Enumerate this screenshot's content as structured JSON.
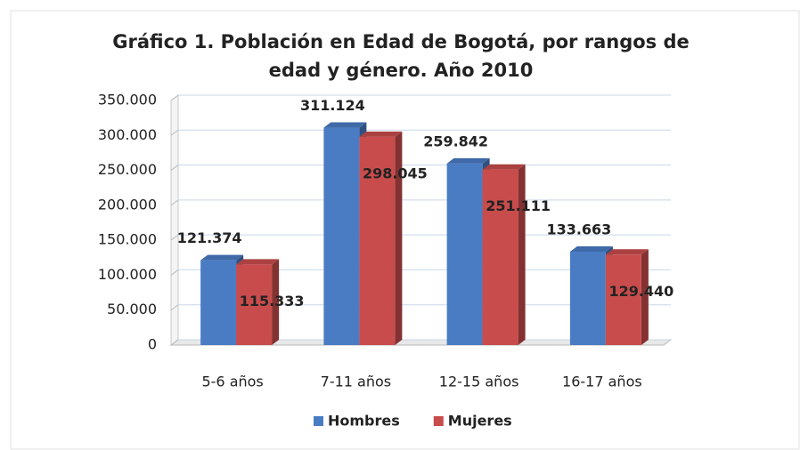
{
  "chart_data": {
    "type": "bar",
    "title": [
      "Gráfico 1. Población en Edad de Bogotá, por rangos de",
      "edad y género. Año 2010"
    ],
    "categories": [
      "5-6 años",
      "7-11 años",
      "12-15 años",
      "16-17 años"
    ],
    "series": [
      {
        "name": "Hombres",
        "color": "#4a7cc4",
        "label_color": "#3a64a8",
        "values": [
          121374,
          311124,
          259842,
          133663
        ],
        "value_labels": [
          "121.374",
          "311.124",
          "259.842",
          "133.663"
        ]
      },
      {
        "name": "Mujeres",
        "color": "#c94c4c",
        "label_color": "#111111",
        "values": [
          115333,
          298045,
          251111,
          129440
        ],
        "value_labels": [
          "115.333",
          "298.045",
          "251.111",
          "129.440"
        ]
      }
    ],
    "ylim": [
      0,
      350000
    ],
    "yticks": [
      0,
      {
        "value": 50000,
        "label": "50.000"
      },
      {
        "value": 100000,
        "label": "100.000"
      },
      {
        "value": 150000,
        "label": "150.000"
      },
      {
        "value": 200000,
        "label": "200.000"
      },
      {
        "value": 250000,
        "label": "250.000"
      },
      {
        "value": 300000,
        "label": "300.000"
      },
      {
        "value": 350000,
        "label": "350.000"
      }
    ],
    "grid": true,
    "legend": "bottom"
  }
}
